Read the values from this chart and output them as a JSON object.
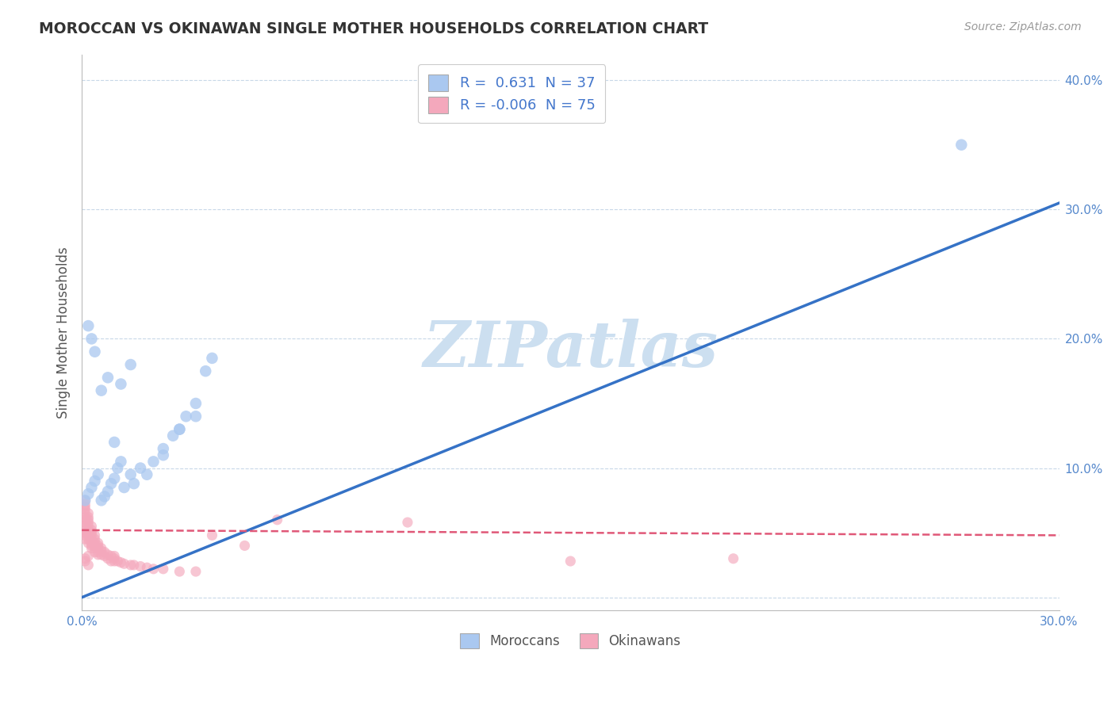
{
  "title": "MOROCCAN VS OKINAWAN SINGLE MOTHER HOUSEHOLDS CORRELATION CHART",
  "source": "Source: ZipAtlas.com",
  "ylabel": "Single Mother Households",
  "xlim": [
    0.0,
    0.3
  ],
  "ylim": [
    -0.01,
    0.42
  ],
  "yticks": [
    0.0,
    0.1,
    0.2,
    0.3,
    0.4
  ],
  "ytick_labels": [
    "",
    "10.0%",
    "20.0%",
    "30.0%",
    "40.0%"
  ],
  "xticks": [
    0.0,
    0.05,
    0.1,
    0.15,
    0.2,
    0.25,
    0.3
  ],
  "xtick_labels": [
    "0.0%",
    "",
    "",
    "",
    "",
    "",
    "30.0%"
  ],
  "moroccan_R": 0.631,
  "moroccan_N": 37,
  "okinawan_R": -0.006,
  "okinawan_N": 75,
  "moroccan_color": "#aac8f0",
  "okinawan_color": "#f4a8bc",
  "moroccan_line_color": "#3572c6",
  "okinawan_line_color": "#e05878",
  "watermark": "ZIPatlas",
  "watermark_color": "#ccdff0",
  "background_color": "#ffffff",
  "grid_color": "#c8d8e8",
  "moroccan_x": [
    0.001,
    0.002,
    0.003,
    0.004,
    0.005,
    0.006,
    0.007,
    0.008,
    0.009,
    0.01,
    0.011,
    0.012,
    0.013,
    0.015,
    0.016,
    0.018,
    0.02,
    0.022,
    0.025,
    0.028,
    0.03,
    0.032,
    0.035,
    0.038,
    0.04,
    0.27,
    0.025,
    0.03,
    0.035,
    0.012,
    0.015,
    0.01,
    0.008,
    0.006,
    0.004,
    0.003,
    0.002
  ],
  "moroccan_y": [
    0.075,
    0.08,
    0.085,
    0.09,
    0.095,
    0.075,
    0.078,
    0.082,
    0.088,
    0.092,
    0.1,
    0.105,
    0.085,
    0.095,
    0.088,
    0.1,
    0.095,
    0.105,
    0.11,
    0.125,
    0.13,
    0.14,
    0.15,
    0.175,
    0.185,
    0.35,
    0.115,
    0.13,
    0.14,
    0.165,
    0.18,
    0.12,
    0.17,
    0.16,
    0.19,
    0.2,
    0.21
  ],
  "okinawan_x": [
    0.001,
    0.001,
    0.001,
    0.001,
    0.001,
    0.001,
    0.001,
    0.001,
    0.001,
    0.001,
    0.001,
    0.001,
    0.001,
    0.002,
    0.002,
    0.002,
    0.002,
    0.002,
    0.002,
    0.002,
    0.002,
    0.002,
    0.002,
    0.003,
    0.003,
    0.003,
    0.003,
    0.003,
    0.003,
    0.003,
    0.003,
    0.004,
    0.004,
    0.004,
    0.004,
    0.004,
    0.004,
    0.005,
    0.005,
    0.005,
    0.005,
    0.005,
    0.006,
    0.006,
    0.006,
    0.007,
    0.007,
    0.008,
    0.008,
    0.009,
    0.009,
    0.01,
    0.01,
    0.01,
    0.011,
    0.012,
    0.013,
    0.015,
    0.016,
    0.018,
    0.02,
    0.022,
    0.025,
    0.03,
    0.035,
    0.04,
    0.05,
    0.06,
    0.1,
    0.15,
    0.2,
    0.001,
    0.002,
    0.001,
    0.002
  ],
  "okinawan_y": [
    0.05,
    0.055,
    0.058,
    0.06,
    0.062,
    0.065,
    0.068,
    0.07,
    0.072,
    0.045,
    0.048,
    0.052,
    0.075,
    0.048,
    0.05,
    0.052,
    0.055,
    0.058,
    0.06,
    0.062,
    0.065,
    0.045,
    0.042,
    0.04,
    0.042,
    0.045,
    0.048,
    0.05,
    0.052,
    0.055,
    0.038,
    0.038,
    0.04,
    0.042,
    0.045,
    0.048,
    0.035,
    0.035,
    0.038,
    0.04,
    0.042,
    0.033,
    0.033,
    0.036,
    0.038,
    0.032,
    0.035,
    0.03,
    0.033,
    0.028,
    0.032,
    0.028,
    0.03,
    0.032,
    0.028,
    0.027,
    0.026,
    0.025,
    0.025,
    0.024,
    0.023,
    0.022,
    0.022,
    0.02,
    0.02,
    0.048,
    0.04,
    0.06,
    0.058,
    0.028,
    0.03,
    0.03,
    0.025,
    0.028,
    0.032
  ],
  "moroccan_line_x": [
    0.0,
    0.3
  ],
  "moroccan_line_y": [
    0.0,
    0.305
  ],
  "okinawan_line_x": [
    0.0,
    0.3
  ],
  "okinawan_line_y": [
    0.052,
    0.048
  ]
}
